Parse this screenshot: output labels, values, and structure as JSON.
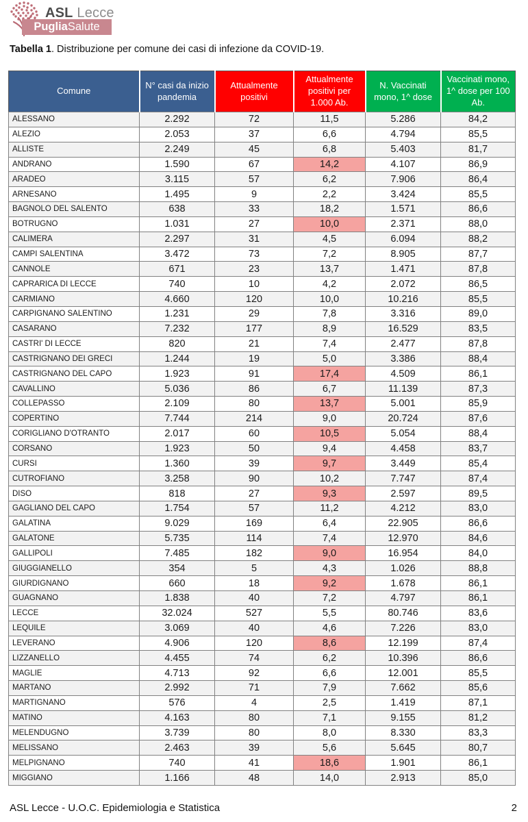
{
  "page": {
    "title_bold": "Tabella 1",
    "title_rest": ". Distribuzione per comune dei casi di infezione da COVID-19.",
    "footer_left": "ASL Lecce - U.O.C. Epidemiologia e Statistica",
    "footer_page": "2"
  },
  "logo": {
    "tree_icon": "olive-tree-icon",
    "org_bold": "ASL",
    "org_rest": " Lecce",
    "banner_bold": "Puglia",
    "banner_rest": "Salute"
  },
  "colors": {
    "blue_header": "#3B5F90",
    "red_header": "#FF0000",
    "green_header": "#00B050",
    "pink_highlight": "#F5A3A0",
    "row_stripe": "#F2F2F2",
    "banner_bg": "#C8878F"
  },
  "table": {
    "columns": [
      "Comune",
      "N° casi da inizio pandemia",
      "Attualmente positivi",
      "Attualmente positivi per 1.000 Ab.",
      "N. Vaccinati mono, 1^ dose",
      "Vaccinati mono, 1^ dose per 100 Ab."
    ],
    "rows": [
      {
        "comune": "ALESSANO",
        "casi": "2.292",
        "positivi": "72",
        "per1000": "11,5",
        "hl": true,
        "vaccinati": "5.286",
        "per100": "84,2"
      },
      {
        "comune": "ALEZIO",
        "casi": "2.053",
        "positivi": "37",
        "per1000": "6,6",
        "hl": false,
        "vaccinati": "4.794",
        "per100": "85,5"
      },
      {
        "comune": "ALLISTE",
        "casi": "2.249",
        "positivi": "45",
        "per1000": "6,8",
        "hl": false,
        "vaccinati": "5.403",
        "per100": "81,7"
      },
      {
        "comune": "ANDRANO",
        "casi": "1.590",
        "positivi": "67",
        "per1000": "14,2",
        "hl": true,
        "vaccinati": "4.107",
        "per100": "86,9"
      },
      {
        "comune": "ARADEO",
        "casi": "3.115",
        "positivi": "57",
        "per1000": "6,2",
        "hl": false,
        "vaccinati": "7.906",
        "per100": "86,4"
      },
      {
        "comune": "ARNESANO",
        "casi": "1.495",
        "positivi": "9",
        "per1000": "2,2",
        "hl": false,
        "vaccinati": "3.424",
        "per100": "85,5"
      },
      {
        "comune": "BAGNOLO DEL SALENTO",
        "casi": "638",
        "positivi": "33",
        "per1000": "18,2",
        "hl": true,
        "vaccinati": "1.571",
        "per100": "86,6"
      },
      {
        "comune": "BOTRUGNO",
        "casi": "1.031",
        "positivi": "27",
        "per1000": "10,0",
        "hl": true,
        "vaccinati": "2.371",
        "per100": "88,0"
      },
      {
        "comune": "CALIMERA",
        "casi": "2.297",
        "positivi": "31",
        "per1000": "4,5",
        "hl": false,
        "vaccinati": "6.094",
        "per100": "88,2"
      },
      {
        "comune": "CAMPI SALENTINA",
        "casi": "3.472",
        "positivi": "73",
        "per1000": "7,2",
        "hl": false,
        "vaccinati": "8.905",
        "per100": "87,7"
      },
      {
        "comune": "CANNOLE",
        "casi": "671",
        "positivi": "23",
        "per1000": "13,7",
        "hl": true,
        "vaccinati": "1.471",
        "per100": "87,8"
      },
      {
        "comune": "CAPRARICA DI LECCE",
        "casi": "740",
        "positivi": "10",
        "per1000": "4,2",
        "hl": false,
        "vaccinati": "2.072",
        "per100": "86,5"
      },
      {
        "comune": "CARMIANO",
        "casi": "4.660",
        "positivi": "120",
        "per1000": "10,0",
        "hl": true,
        "vaccinati": "10.216",
        "per100": "85,5"
      },
      {
        "comune": "CARPIGNANO SALENTINO",
        "casi": "1.231",
        "positivi": "29",
        "per1000": "7,8",
        "hl": false,
        "vaccinati": "3.316",
        "per100": "89,0"
      },
      {
        "comune": "CASARANO",
        "casi": "7.232",
        "positivi": "177",
        "per1000": "8,9",
        "hl": true,
        "vaccinati": "16.529",
        "per100": "83,5"
      },
      {
        "comune": "CASTRI' DI LECCE",
        "casi": "820",
        "positivi": "21",
        "per1000": "7,4",
        "hl": false,
        "vaccinati": "2.477",
        "per100": "87,8"
      },
      {
        "comune": "CASTRIGNANO DEI GRECI",
        "casi": "1.244",
        "positivi": "19",
        "per1000": "5,0",
        "hl": false,
        "vaccinati": "3.386",
        "per100": "88,4"
      },
      {
        "comune": "CASTRIGNANO DEL CAPO",
        "casi": "1.923",
        "positivi": "91",
        "per1000": "17,4",
        "hl": true,
        "vaccinati": "4.509",
        "per100": "86,1"
      },
      {
        "comune": "CAVALLINO",
        "casi": "5.036",
        "positivi": "86",
        "per1000": "6,7",
        "hl": false,
        "vaccinati": "11.139",
        "per100": "87,3"
      },
      {
        "comune": "COLLEPASSO",
        "casi": "2.109",
        "positivi": "80",
        "per1000": "13,7",
        "hl": true,
        "vaccinati": "5.001",
        "per100": "85,9"
      },
      {
        "comune": "COPERTINO",
        "casi": "7.744",
        "positivi": "214",
        "per1000": "9,0",
        "hl": true,
        "vaccinati": "20.724",
        "per100": "87,6"
      },
      {
        "comune": "CORIGLIANO D'OTRANTO",
        "casi": "2.017",
        "positivi": "60",
        "per1000": "10,5",
        "hl": true,
        "vaccinati": "5.054",
        "per100": "88,4"
      },
      {
        "comune": "CORSANO",
        "casi": "1.923",
        "positivi": "50",
        "per1000": "9,4",
        "hl": true,
        "vaccinati": "4.458",
        "per100": "83,7"
      },
      {
        "comune": "CURSI",
        "casi": "1.360",
        "positivi": "39",
        "per1000": "9,7",
        "hl": true,
        "vaccinati": "3.449",
        "per100": "85,4"
      },
      {
        "comune": "CUTROFIANO",
        "casi": "3.258",
        "positivi": "90",
        "per1000": "10,2",
        "hl": true,
        "vaccinati": "7.747",
        "per100": "87,4"
      },
      {
        "comune": "DISO",
        "casi": "818",
        "positivi": "27",
        "per1000": "9,3",
        "hl": true,
        "vaccinati": "2.597",
        "per100": "89,5"
      },
      {
        "comune": "GAGLIANO DEL CAPO",
        "casi": "1.754",
        "positivi": "57",
        "per1000": "11,2",
        "hl": true,
        "vaccinati": "4.212",
        "per100": "83,0"
      },
      {
        "comune": "GALATINA",
        "casi": "9.029",
        "positivi": "169",
        "per1000": "6,4",
        "hl": false,
        "vaccinati": "22.905",
        "per100": "86,6"
      },
      {
        "comune": "GALATONE",
        "casi": "5.735",
        "positivi": "114",
        "per1000": "7,4",
        "hl": false,
        "vaccinati": "12.970",
        "per100": "84,6"
      },
      {
        "comune": "GALLIPOLI",
        "casi": "7.485",
        "positivi": "182",
        "per1000": "9,0",
        "hl": true,
        "vaccinati": "16.954",
        "per100": "84,0"
      },
      {
        "comune": "GIUGGIANELLO",
        "casi": "354",
        "positivi": "5",
        "per1000": "4,3",
        "hl": false,
        "vaccinati": "1.026",
        "per100": "88,8"
      },
      {
        "comune": "GIURDIGNANO",
        "casi": "660",
        "positivi": "18",
        "per1000": "9,2",
        "hl": true,
        "vaccinati": "1.678",
        "per100": "86,1"
      },
      {
        "comune": "GUAGNANO",
        "casi": "1.838",
        "positivi": "40",
        "per1000": "7,2",
        "hl": false,
        "vaccinati": "4.797",
        "per100": "86,1"
      },
      {
        "comune": "LECCE",
        "casi": "32.024",
        "positivi": "527",
        "per1000": "5,5",
        "hl": false,
        "vaccinati": "80.746",
        "per100": "83,6"
      },
      {
        "comune": "LEQUILE",
        "casi": "3.069",
        "positivi": "40",
        "per1000": "4,6",
        "hl": false,
        "vaccinati": "7.226",
        "per100": "83,0"
      },
      {
        "comune": "LEVERANO",
        "casi": "4.906",
        "positivi": "120",
        "per1000": "8,6",
        "hl": true,
        "vaccinati": "12.199",
        "per100": "87,4"
      },
      {
        "comune": "LIZZANELLO",
        "casi": "4.455",
        "positivi": "74",
        "per1000": "6,2",
        "hl": false,
        "vaccinati": "10.396",
        "per100": "86,6"
      },
      {
        "comune": "MAGLIE",
        "casi": "4.713",
        "positivi": "92",
        "per1000": "6,6",
        "hl": false,
        "vaccinati": "12.001",
        "per100": "85,5"
      },
      {
        "comune": "MARTANO",
        "casi": "2.992",
        "positivi": "71",
        "per1000": "7,9",
        "hl": true,
        "vaccinati": "7.662",
        "per100": "85,6"
      },
      {
        "comune": "MARTIGNANO",
        "casi": "576",
        "positivi": "4",
        "per1000": "2,5",
        "hl": false,
        "vaccinati": "1.419",
        "per100": "87,1"
      },
      {
        "comune": "MATINO",
        "casi": "4.163",
        "positivi": "80",
        "per1000": "7,1",
        "hl": false,
        "vaccinati": "9.155",
        "per100": "81,2"
      },
      {
        "comune": "MELENDUGNO",
        "casi": "3.739",
        "positivi": "80",
        "per1000": "8,0",
        "hl": false,
        "vaccinati": "8.330",
        "per100": "83,3"
      },
      {
        "comune": "MELISSANO",
        "casi": "2.463",
        "positivi": "39",
        "per1000": "5,6",
        "hl": false,
        "vaccinati": "5.645",
        "per100": "80,7"
      },
      {
        "comune": "MELPIGNANO",
        "casi": "740",
        "positivi": "41",
        "per1000": "18,6",
        "hl": true,
        "vaccinati": "1.901",
        "per100": "86,1"
      },
      {
        "comune": "MIGGIANO",
        "casi": "1.166",
        "positivi": "48",
        "per1000": "14,0",
        "hl": true,
        "vaccinati": "2.913",
        "per100": "85,0"
      }
    ]
  }
}
